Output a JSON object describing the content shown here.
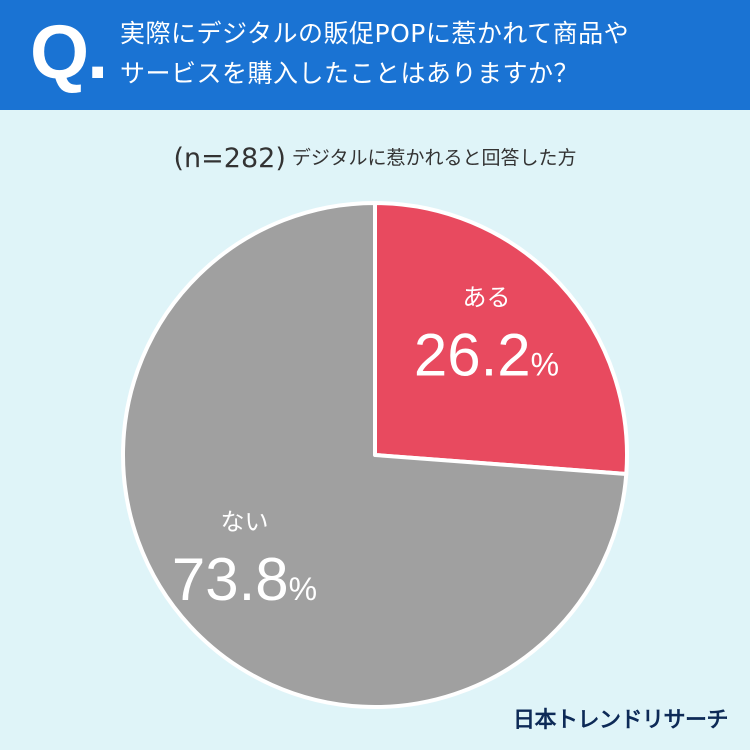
{
  "header": {
    "q_mark": "Q.",
    "question_line1": "実際にデジタルの販促POPに惹かれて商品や",
    "question_line2": "サービスを購入したことはありますか？"
  },
  "subtitle": {
    "sample_size": "(n=282)",
    "respondent_group": "デジタルに惹かれると回答した方"
  },
  "brand": {
    "name": "日本トレンドリサーチ"
  },
  "colors": {
    "header_background": "#1a73d3",
    "page_background": "#dff4f8",
    "yes_slice": "#e84a5f",
    "no_slice": "#a0a0a0"
  },
  "chart_data": {
    "type": "pie",
    "title": "",
    "slices": [
      {
        "label": "ある",
        "value": 26.2,
        "display": "26.2",
        "unit": "%",
        "color": "#e84a5f"
      },
      {
        "label": "ない",
        "value": 73.8,
        "display": "73.8",
        "unit": "%",
        "color": "#a0a0a0"
      }
    ],
    "start_angle": "12 o'clock",
    "direction": "clockwise",
    "legend": "none"
  }
}
